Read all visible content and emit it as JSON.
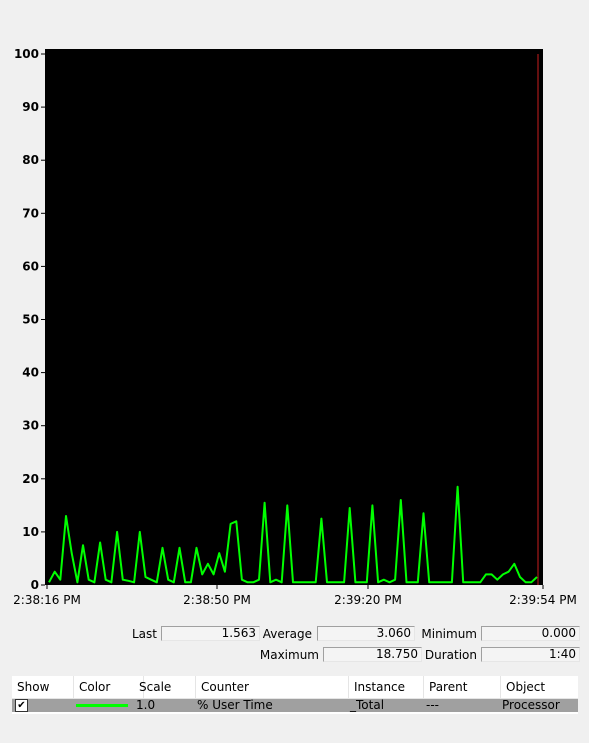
{
  "chart_data": {
    "type": "line",
    "title": "",
    "xlabel": "",
    "ylabel": "",
    "ylim": [
      0,
      100
    ],
    "yticks": [
      "0",
      "10",
      "20",
      "30",
      "40",
      "50",
      "60",
      "70",
      "80",
      "90",
      "100"
    ],
    "xticks": [
      "2:38:16 PM",
      "2:38:50 PM",
      "2:39:20 PM",
      "2:39:54 PM"
    ],
    "series": [
      {
        "color": "#00ff00",
        "values": [
          0.5,
          2.5,
          1.0,
          13.0,
          6.0,
          0.5,
          7.5,
          1.0,
          0.5,
          8.0,
          1.0,
          0.5,
          10.0,
          1.0,
          0.8,
          0.5,
          10.0,
          1.5,
          1.0,
          0.5,
          7.0,
          1.0,
          0.5,
          7.0,
          0.5,
          0.5,
          7.0,
          2.0,
          4.0,
          2.0,
          6.0,
          2.5,
          11.5,
          12.0,
          1.0,
          0.5,
          0.5,
          1.0,
          15.5,
          0.5,
          1.0,
          0.5,
          15.0,
          0.5,
          0.5,
          0.5,
          0.5,
          0.5,
          12.5,
          0.5,
          0.5,
          0.5,
          0.5,
          14.5,
          0.5,
          0.5,
          0.5,
          15.0,
          0.5,
          1.0,
          0.5,
          1.0,
          16.0,
          0.5,
          0.5,
          0.5,
          13.5,
          0.5,
          0.5,
          0.5,
          0.5,
          0.5,
          18.5,
          0.5,
          0.5,
          0.5,
          0.5,
          2.0,
          2.0,
          1.0,
          2.0,
          2.5,
          4.0,
          1.5,
          0.5,
          0.5,
          1.5
        ]
      }
    ]
  },
  "stats": {
    "last_label": "Last",
    "last_value": "1.563",
    "average_label": "Average",
    "average_value": "3.060",
    "minimum_label": "Minimum",
    "minimum_value": "0.000",
    "maximum_label": "Maximum",
    "maximum_value": "18.750",
    "duration_label": "Duration",
    "duration_value": "1:40"
  },
  "legend": {
    "columns": [
      "Show",
      "Color",
      "Scale",
      "Counter",
      "Instance",
      "Parent",
      "Object"
    ],
    "rows": [
      {
        "show": "✔",
        "color": "#00ff00",
        "scale": "1.0",
        "counter": "% User Time",
        "instance": "_Total",
        "parent": "---",
        "object": "Processor"
      }
    ]
  }
}
